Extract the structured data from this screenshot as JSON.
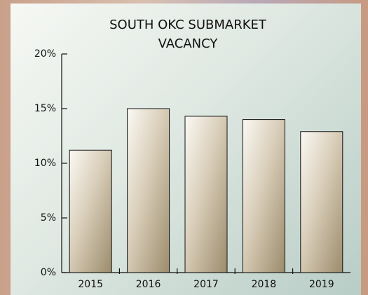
{
  "chart_data": {
    "type": "bar",
    "title": "SOUTH OKC SUBMARKET VACANCY",
    "categories": [
      "2015",
      "2016",
      "2017",
      "2018",
      "2019"
    ],
    "values": [
      11.2,
      15.0,
      14.3,
      14.0,
      12.9
    ],
    "ylim": [
      0,
      20
    ],
    "yticks": [
      {
        "value": 0,
        "label": "0%"
      },
      {
        "value": 5,
        "label": "5%"
      },
      {
        "value": 10,
        "label": "10%"
      },
      {
        "value": 15,
        "label": "15%"
      },
      {
        "value": 20,
        "label": "20%"
      }
    ],
    "grid": false
  }
}
